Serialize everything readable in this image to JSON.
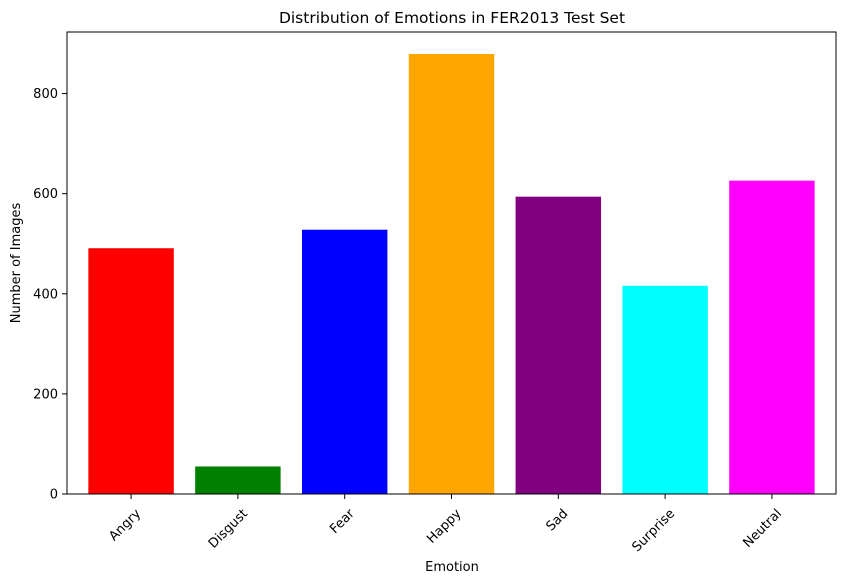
{
  "chart_data": {
    "type": "bar",
    "title": "Distribution of Emotions in FER2013 Test Set",
    "xlabel": "Emotion",
    "ylabel": "Number of Images",
    "categories": [
      "Angry",
      "Disgust",
      "Fear",
      "Happy",
      "Sad",
      "Surprise",
      "Neutral"
    ],
    "values": [
      491,
      55,
      528,
      879,
      594,
      416,
      626
    ],
    "colors": [
      "#ff0000",
      "#008000",
      "#0000ff",
      "#ffa500",
      "#800080",
      "#00ffff",
      "#ff00ff"
    ],
    "ylim": [
      0,
      923
    ],
    "yticks": [
      0,
      200,
      400,
      600,
      800
    ],
    "xtick_rotation": 45,
    "grid": false,
    "legend": "none"
  }
}
